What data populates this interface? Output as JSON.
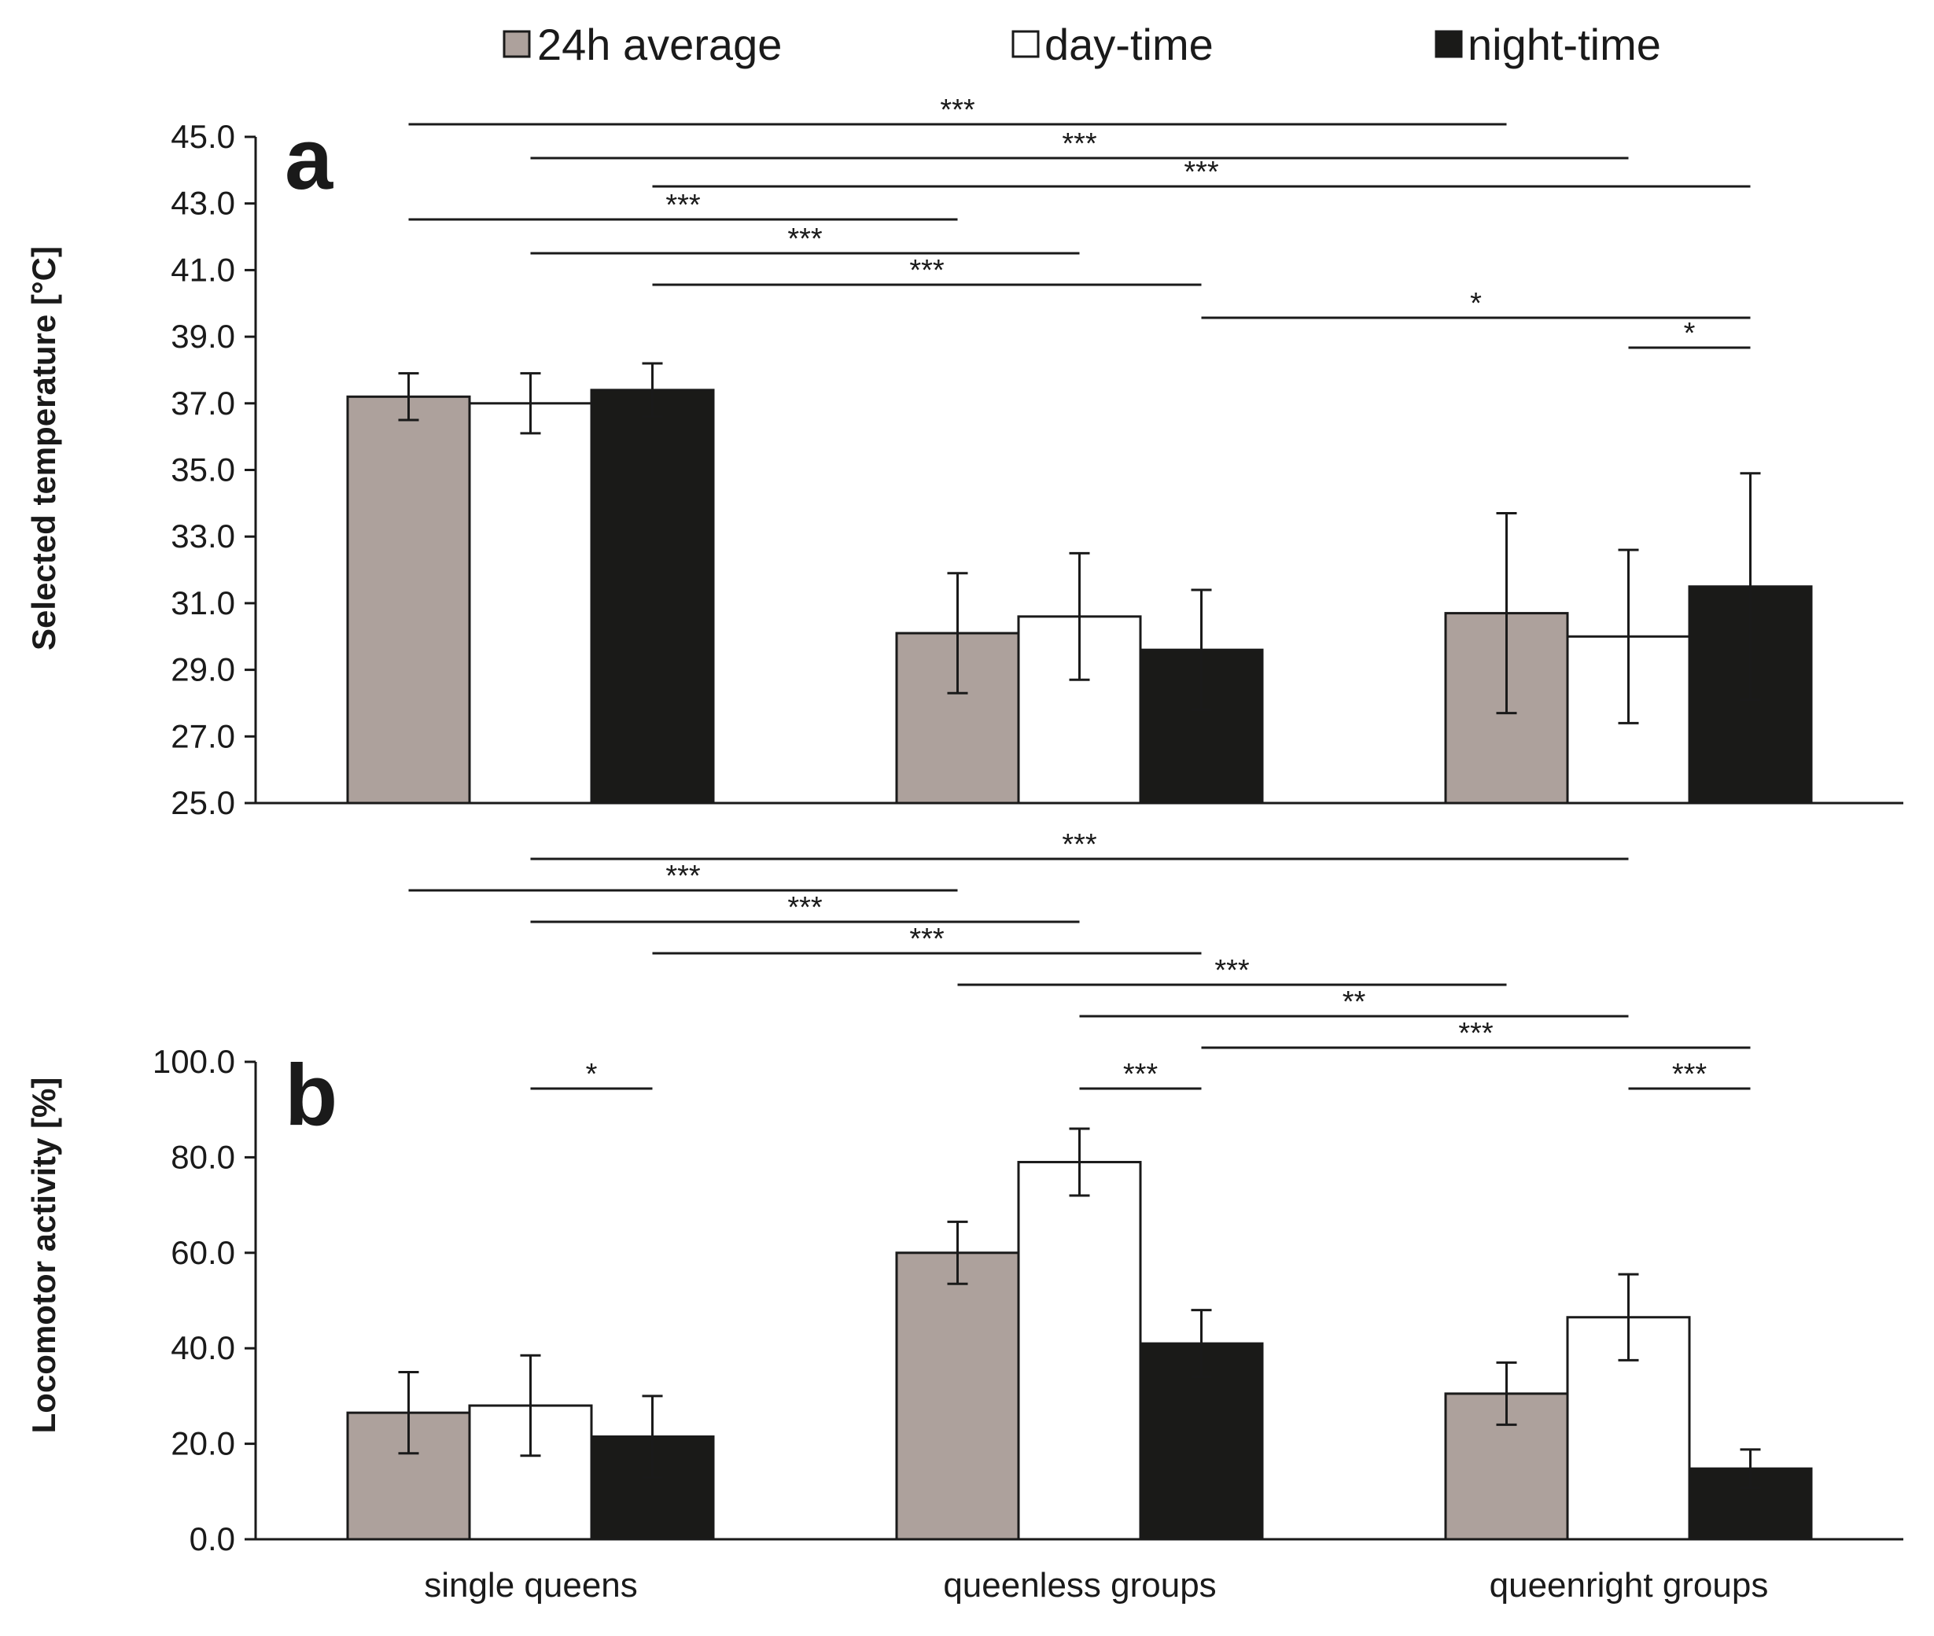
{
  "legend": [
    {
      "label": "24h average",
      "color": "#ada19c"
    },
    {
      "label": "day-time",
      "color": "#ffffff"
    },
    {
      "label": "night-time",
      "color": "#1a1a18"
    }
  ],
  "categories": [
    "single queens",
    "queenless groups",
    "queenright groups"
  ],
  "chart_data": [
    {
      "type": "bar",
      "panel": "a",
      "ylabel": "Selected temperature [°C]",
      "ylim": [
        25,
        45
      ],
      "yticks": [
        "25.0",
        "27.0",
        "29.0",
        "31.0",
        "33.0",
        "35.0",
        "37.0",
        "39.0",
        "41.0",
        "43.0",
        "45.0"
      ],
      "categories": [
        "single queens",
        "queenless groups",
        "queenright groups"
      ],
      "series": [
        {
          "name": "24h average",
          "values": [
            37.2,
            30.1,
            30.7
          ],
          "errors": [
            0.7,
            1.8,
            3.0
          ]
        },
        {
          "name": "day-time",
          "values": [
            37.0,
            30.6,
            30.0
          ],
          "errors": [
            0.9,
            1.9,
            2.6
          ]
        },
        {
          "name": "night-time",
          "values": [
            37.4,
            29.6,
            31.5
          ],
          "errors": [
            0.8,
            1.8,
            3.4
          ]
        }
      ],
      "significance": [
        {
          "from": [
            0,
            0
          ],
          "to": [
            2,
            0
          ],
          "label": "***"
        },
        {
          "from": [
            0,
            1
          ],
          "to": [
            2,
            1
          ],
          "label": "***"
        },
        {
          "from": [
            0,
            2
          ],
          "to": [
            2,
            2
          ],
          "label": "***"
        },
        {
          "from": [
            0,
            0
          ],
          "to": [
            1,
            0
          ],
          "label": "***"
        },
        {
          "from": [
            0,
            1
          ],
          "to": [
            1,
            1
          ],
          "label": "***"
        },
        {
          "from": [
            0,
            2
          ],
          "to": [
            1,
            2
          ],
          "label": "***"
        },
        {
          "from": [
            1,
            2
          ],
          "to": [
            2,
            2
          ],
          "label": "*"
        },
        {
          "from": [
            2,
            1
          ],
          "to": [
            2,
            2
          ],
          "label": "*"
        }
      ]
    },
    {
      "type": "bar",
      "panel": "b",
      "ylabel": "Locomotor activity [%]",
      "ylim": [
        0,
        100
      ],
      "yticks": [
        "0.0",
        "20.0",
        "40.0",
        "60.0",
        "80.0",
        "100.0"
      ],
      "categories": [
        "single queens",
        "queenless groups",
        "queenright groups"
      ],
      "series": [
        {
          "name": "24h average",
          "values": [
            26.5,
            60.0,
            30.5
          ],
          "errors": [
            8.5,
            6.5,
            6.5
          ]
        },
        {
          "name": "day-time",
          "values": [
            28.0,
            79.0,
            46.5
          ],
          "errors": [
            10.5,
            7.0,
            9.0
          ]
        },
        {
          "name": "night-time",
          "values": [
            21.5,
            41.0,
            14.8
          ],
          "errors": [
            8.5,
            7.0,
            4.0
          ]
        }
      ],
      "significance": [
        {
          "from": [
            0,
            1
          ],
          "to": [
            2,
            1
          ],
          "label": "***"
        },
        {
          "from": [
            0,
            0
          ],
          "to": [
            1,
            0
          ],
          "label": "***"
        },
        {
          "from": [
            0,
            1
          ],
          "to": [
            1,
            1
          ],
          "label": "***"
        },
        {
          "from": [
            0,
            2
          ],
          "to": [
            1,
            2
          ],
          "label": "***"
        },
        {
          "from": [
            1,
            0
          ],
          "to": [
            2,
            0
          ],
          "label": "***"
        },
        {
          "from": [
            1,
            1
          ],
          "to": [
            2,
            1
          ],
          "label": "**"
        },
        {
          "from": [
            1,
            2
          ],
          "to": [
            2,
            2
          ],
          "label": "***"
        },
        {
          "from": [
            0,
            1
          ],
          "to": [
            0,
            2
          ],
          "label": "*"
        },
        {
          "from": [
            1,
            1
          ],
          "to": [
            1,
            2
          ],
          "label": "***"
        },
        {
          "from": [
            2,
            1
          ],
          "to": [
            2,
            2
          ],
          "label": "***"
        }
      ]
    }
  ]
}
